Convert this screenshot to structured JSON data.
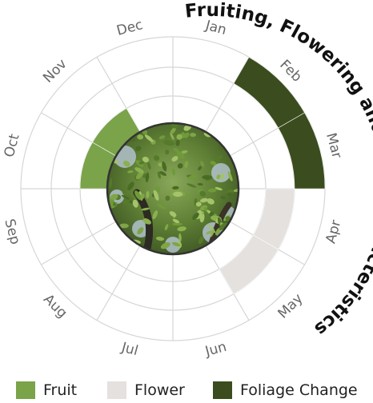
{
  "chart_data": {
    "type": "radial-calendar",
    "title": "Fruiting, Flowering and Tree Characteristics",
    "months": [
      "Jan",
      "Feb",
      "Mar",
      "Apr",
      "May",
      "Jun",
      "Jul",
      "Aug",
      "Sep",
      "Oct",
      "Nov",
      "Dec"
    ],
    "series": [
      {
        "name": "Fruit",
        "color": "#7aa34a",
        "ring": "inner",
        "months": [
          "Oct",
          "Nov"
        ]
      },
      {
        "name": "Flower",
        "color": "#e4e1de",
        "ring": "middle",
        "months": [
          "Apr",
          "May"
        ]
      },
      {
        "name": "Foliage Change",
        "color": "#3b4d1f",
        "ring": "outer",
        "months": [
          "Feb",
          "Mar"
        ]
      }
    ],
    "center_image": "tree-foliage-photo"
  },
  "legend": [
    {
      "label": "Fruit",
      "color": "#7aa34a"
    },
    {
      "label": "Flower",
      "color": "#e4e1de"
    },
    {
      "label": "Foliage Change",
      "color": "#3b4d1f"
    }
  ]
}
